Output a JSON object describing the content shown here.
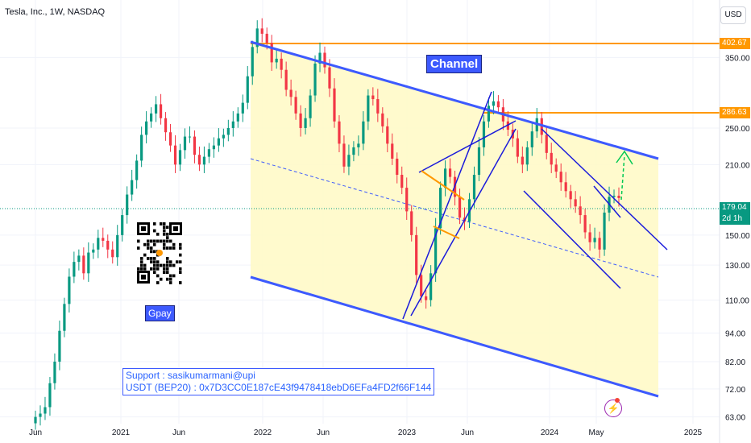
{
  "header": {
    "title": "Tesla, Inc., 1W, NASDAQ",
    "currency": "USD"
  },
  "annotations": {
    "channel": "Channel",
    "gpay": "Gpay",
    "support_line1": "Support : sasikumarmani@upi",
    "support_line2": "USDT (BEP20) : 0x7D3CC0E187cE43f9478418ebD6EFa4FD2f66F144"
  },
  "price_labels": {
    "high": "402.67",
    "mid": "286.63",
    "current": "179.04",
    "countdown": "2d 1h"
  },
  "colors": {
    "up": "#089981",
    "down": "#f23645",
    "channel": "#3d5afe",
    "fill": "#fff9c4",
    "resistance": "#ff9800",
    "current": "#089981"
  },
  "chart_data": {
    "type": "candlestick",
    "title": "Tesla, Inc., 1W, NASDAQ",
    "y_scale": "log",
    "ylim": [
      61,
      450
    ],
    "y_ticks": [
      350,
      250,
      210,
      150,
      130,
      110,
      94,
      82,
      72,
      63
    ],
    "x_ticks": [
      "Jun",
      "2021",
      "Jun",
      "2022",
      "Jun",
      "2023",
      "Jun",
      "2024",
      "May",
      "2025"
    ],
    "close_series": [
      63,
      64,
      66,
      74,
      82,
      95,
      108,
      123,
      132,
      136,
      125,
      138,
      140,
      148,
      146,
      140,
      135,
      150,
      165,
      182,
      195,
      214,
      242,
      258,
      268,
      280,
      262,
      245,
      230,
      210,
      225,
      240,
      240,
      220,
      210,
      218,
      226,
      230,
      238,
      242,
      250,
      258,
      268,
      282,
      320,
      368,
      402,
      392,
      375,
      342,
      348,
      330,
      300,
      290,
      268,
      250,
      262,
      292,
      340,
      358,
      334,
      302,
      258,
      232,
      208,
      220,
      228,
      232,
      258,
      292,
      287,
      268,
      252,
      232,
      216,
      200,
      188,
      168,
      150,
      124,
      112,
      110,
      125,
      155,
      188,
      206,
      198,
      180,
      163,
      160,
      178,
      200,
      228,
      258,
      278,
      284,
      276,
      258,
      248,
      238,
      218,
      210,
      228,
      246,
      262,
      242,
      222,
      210,
      203,
      193,
      185,
      178,
      172,
      165,
      152,
      145,
      148,
      140,
      167,
      180,
      181,
      179
    ]
  }
}
